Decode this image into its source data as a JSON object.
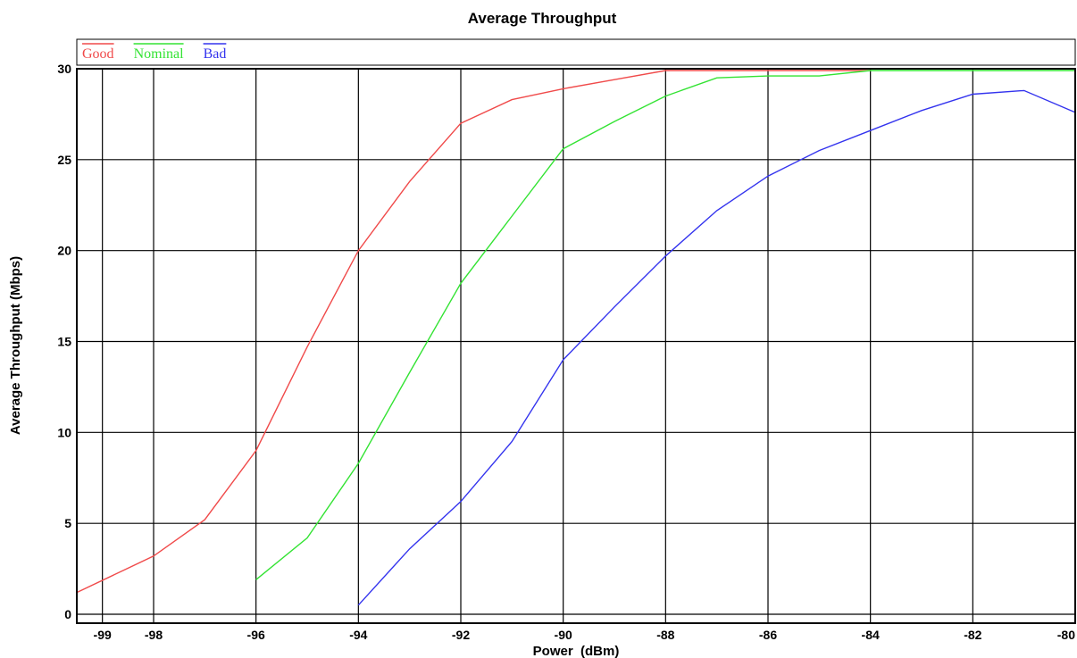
{
  "chart_data": {
    "type": "line",
    "title": "Average Throughput",
    "xlabel": "Power  (dBm)",
    "ylabel": "Average Throughput (Mbps)",
    "xlim": [
      -99.5,
      -80
    ],
    "ylim": [
      0,
      30
    ],
    "x_ticks": [
      -99,
      -98,
      -96,
      -94,
      -92,
      -90,
      -88,
      -86,
      -84,
      -82,
      -80
    ],
    "y_ticks": [
      0,
      5,
      10,
      15,
      20,
      25,
      30
    ],
    "grid": true,
    "legend_position": "top",
    "series": [
      {
        "name": "Good",
        "color": "#f04a4a",
        "x": [
          -99.5,
          -98,
          -97,
          -96,
          -95,
          -94,
          -93,
          -92,
          -91,
          -90,
          -89,
          -88,
          -87,
          -86,
          -85,
          -84
        ],
        "y": [
          1.2,
          3.2,
          5.2,
          9,
          14.7,
          20,
          23.8,
          27,
          28.3,
          28.9,
          29.4,
          29.9,
          29.9,
          29.9,
          29.9,
          29.9
        ]
      },
      {
        "name": "Nominal",
        "color": "#33e333",
        "x": [
          -96,
          -95,
          -94,
          -93,
          -92,
          -91,
          -90,
          -89,
          -88,
          -87,
          -86,
          -85,
          -84,
          -83,
          -82,
          -81,
          -80
        ],
        "y": [
          1.9,
          4.2,
          8.3,
          13.3,
          18.2,
          21.9,
          25.6,
          27.1,
          28.5,
          29.5,
          29.6,
          29.6,
          29.9,
          29.9,
          29.9,
          29.9,
          29.9
        ]
      },
      {
        "name": "Bad",
        "color": "#3333ee",
        "x": [
          -94,
          -93,
          -92,
          -91,
          -90,
          -89,
          -88,
          -87,
          -86,
          -85,
          -84,
          -83,
          -82,
          -81,
          -80
        ],
        "y": [
          0.5,
          3.6,
          6.2,
          9.5,
          14,
          16.9,
          19.7,
          22.2,
          24.1,
          25.5,
          26.6,
          27.7,
          28.6,
          28.8,
          27.6
        ]
      }
    ]
  }
}
